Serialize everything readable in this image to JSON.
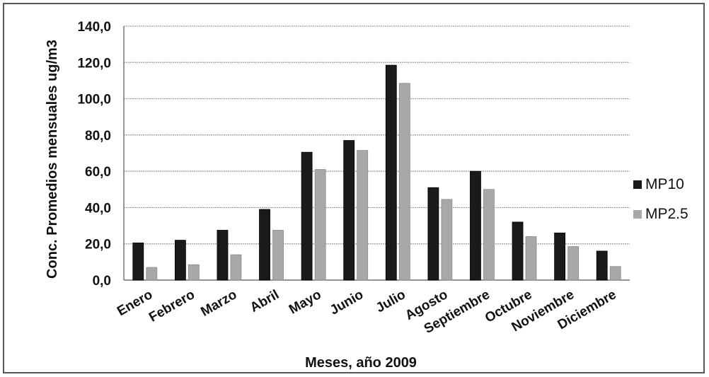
{
  "chart_data": {
    "type": "bar",
    "title": "",
    "xlabel": "Meses, año 2009",
    "ylabel": "Conc. Promedios mensuales ug/m3",
    "categories": [
      "Enero",
      "Febrero",
      "Marzo",
      "Abril",
      "Mayo",
      "Junio",
      "Julio",
      "Agosto",
      "Septiembre",
      "Octubre",
      "Noviembre",
      "Diciembre"
    ],
    "series": [
      {
        "name": "MP10",
        "color": "#1a1a1a",
        "values": [
          20.5,
          22.0,
          27.5,
          39.0,
          70.5,
          77.0,
          118.5,
          51.0,
          60.0,
          32.0,
          26.0,
          16.0
        ]
      },
      {
        "name": "MP2.5",
        "color": "#a8a8a8",
        "values": [
          7.0,
          8.5,
          14.0,
          27.5,
          61.0,
          71.5,
          108.5,
          44.5,
          50.0,
          24.0,
          18.5,
          7.5
        ]
      }
    ],
    "ylim": [
      0,
      140
    ],
    "yticks": [
      "0,0",
      "20,0",
      "40,0",
      "60,0",
      "80,0",
      "100,0",
      "120,0",
      "140,0"
    ],
    "grid": true,
    "legend": "right"
  }
}
